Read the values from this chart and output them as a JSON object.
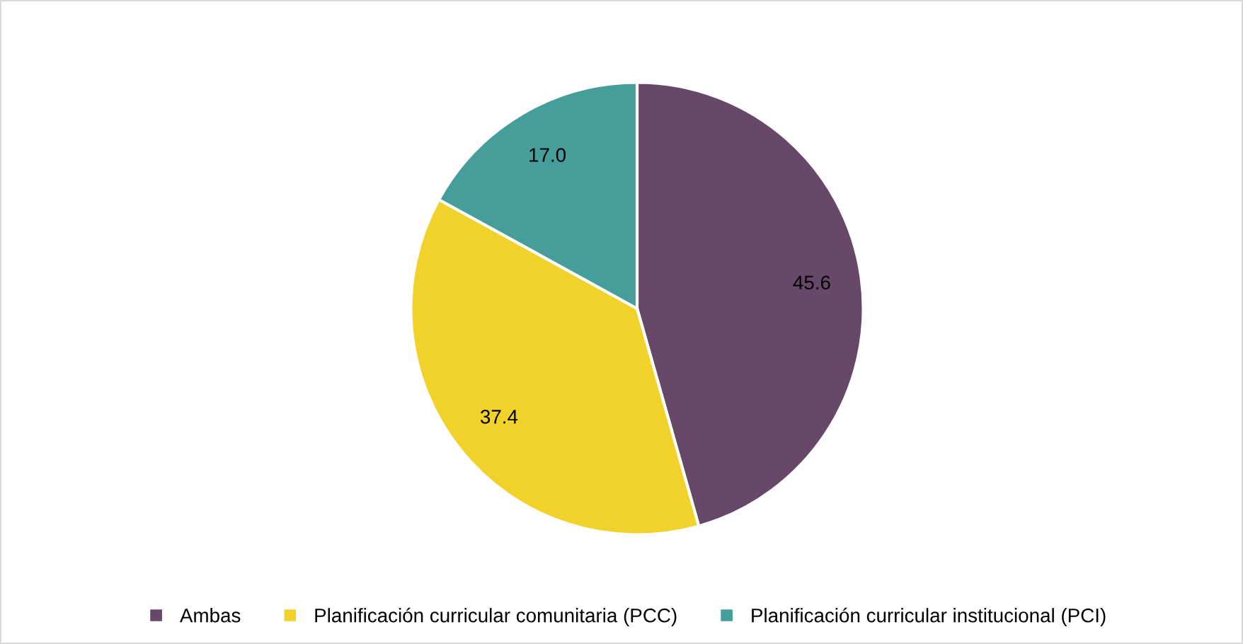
{
  "chart_data": {
    "type": "pie",
    "categories": [
      "Ambas",
      "Planificación curricular comunitaria (PCC)",
      "Planificación curricular institucional (PCI)"
    ],
    "values": [
      45.6,
      37.4,
      17.0
    ],
    "colors": [
      "#674868",
      "#f1d22a",
      "#459e9a"
    ],
    "value_labels": [
      "45.6",
      "37.4",
      "17.0"
    ],
    "legend": "bottom"
  }
}
